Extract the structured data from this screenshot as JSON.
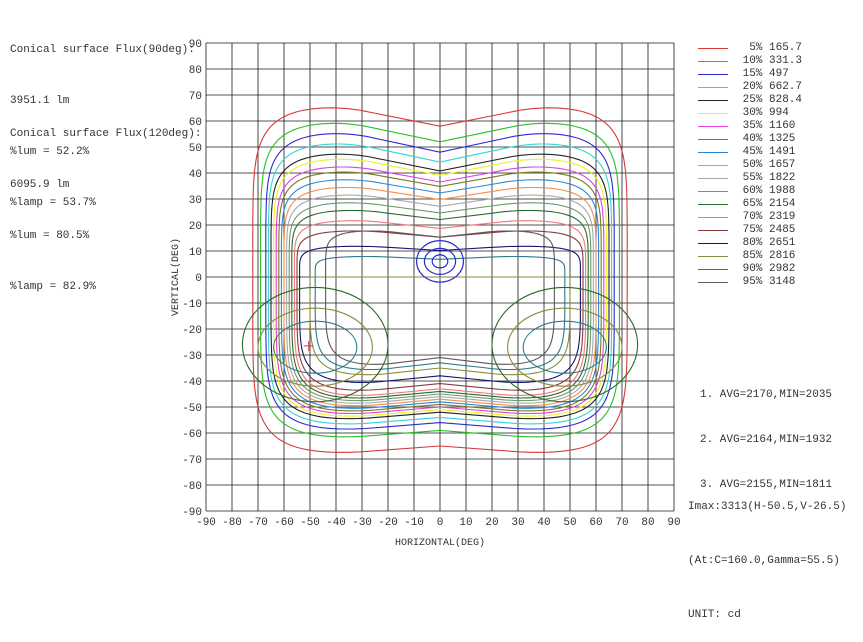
{
  "flux": [
    {
      "title": "Conical surface Flux(90deg):",
      "value": "3951.1 lm",
      "lum": "%lum = 52.2%",
      "lamp": "%lamp = 53.7%"
    },
    {
      "title": "Conical surface Flux(120deg):",
      "value": "6095.9 lm",
      "lum": "%lum = 80.5%",
      "lamp": "%lamp = 82.9%"
    }
  ],
  "averages": [
    "1. AVG=2170,MIN=2035",
    "2. AVG=2164,MIN=1932",
    "3. AVG=2155,MIN=1811"
  ],
  "imax": "Imax:3313(H-50.5,V-26.5)",
  "imax_at": "(At:C=160.0,Gamma=55.5)",
  "unit": "UNIT: cd",
  "chart_data": {
    "type": "contour",
    "xlabel": "HORIZONTAL(DEG)",
    "ylabel": "VERTICAL(DEG)",
    "xlim": [
      -90,
      90
    ],
    "ylim": [
      -90,
      90
    ],
    "xticks": [
      -90,
      -80,
      -70,
      -60,
      -50,
      -40,
      -30,
      -20,
      -10,
      0,
      10,
      20,
      30,
      40,
      50,
      60,
      70,
      80,
      90
    ],
    "yticks": [
      90,
      80,
      70,
      60,
      50,
      40,
      30,
      20,
      10,
      0,
      -10,
      -20,
      -30,
      -40,
      -50,
      -60,
      -70,
      -80,
      -90
    ],
    "grid": true,
    "legend_position": "right",
    "levels": [
      {
        "label": "5%",
        "value": 165.7,
        "color": "#d63a3a",
        "hx": 72,
        "top": 66,
        "bot": -68
      },
      {
        "label": "10%",
        "value": 331.3,
        "color": "#26c126",
        "hx": 69,
        "top": 60,
        "bot": -62
      },
      {
        "label": "15%",
        "value": 497.0,
        "color": "#2a2ad2",
        "hx": 67,
        "top": 56,
        "bot": -59
      },
      {
        "label": "20%",
        "value": 662.7,
        "color": "#2ed6d6",
        "hx": 66,
        "top": 52,
        "bot": -57
      },
      {
        "label": "25%",
        "value": 828.4,
        "color": "#222222",
        "hx": 65,
        "top": 48,
        "bot": -55
      },
      {
        "label": "30%",
        "value": 994.0,
        "color": "#f0f020",
        "hx": 64,
        "top": 46,
        "bot": -54
      },
      {
        "label": "35%",
        "value": 1160,
        "color": "#e040e0",
        "hx": 63,
        "top": 43,
        "bot": -53
      },
      {
        "label": "40%",
        "value": 1325,
        "color": "#7a7a22",
        "hx": 62,
        "top": 41,
        "bot": -52
      },
      {
        "label": "45%",
        "value": 1491,
        "color": "#2a88d8",
        "hx": 61,
        "top": 38,
        "bot": -51
      },
      {
        "label": "50%",
        "value": 1657,
        "color": "#f09050",
        "hx": 60,
        "top": 35,
        "bot": -50
      },
      {
        "label": "55%",
        "value": 1822,
        "color": "#a8a8a8",
        "hx": 59,
        "top": 32,
        "bot": -49
      },
      {
        "label": "60%",
        "value": 1988,
        "color": "#6a9a6a",
        "hx": 58,
        "top": 29,
        "bot": -48
      },
      {
        "label": "65%",
        "value": 2154,
        "color": "#2a6a2a",
        "hx": 57,
        "top": 26,
        "bot": -47
      },
      {
        "label": "70%",
        "value": 2319,
        "color": "#f07878",
        "hx": 56,
        "top": 22,
        "bot": -46
      },
      {
        "label": "75%",
        "value": 2485,
        "color": "#8a3a3a",
        "hx": 55,
        "top": 18,
        "bot": -44
      },
      {
        "label": "80%",
        "value": 2651,
        "color": "#141470",
        "hx": 54,
        "top": 12,
        "bot": -41
      },
      {
        "label": "85%",
        "value": 2816,
        "color": "#8a8a40",
        "hx": 50,
        "top": 0,
        "bot": -38
      },
      {
        "label": "90%",
        "value": 2982,
        "color": "#2a7a8a",
        "hx": 48,
        "top": -8,
        "bot": -36
      },
      {
        "label": "95%",
        "value": 3148,
        "color": "#5a5a5a",
        "hx": 44,
        "top": -18,
        "bot": -34
      }
    ],
    "inner_loops": [
      {
        "cx": -48,
        "cy": -26,
        "rx": 28,
        "ry": 22,
        "color": "#2a6a2a"
      },
      {
        "cx": 48,
        "cy": -26,
        "rx": 28,
        "ry": 22,
        "color": "#2a6a2a"
      },
      {
        "cx": -48,
        "cy": -27,
        "rx": 22,
        "ry": 15,
        "color": "#8a8a40"
      },
      {
        "cx": 48,
        "cy": -27,
        "rx": 22,
        "ry": 15,
        "color": "#8a8a40"
      },
      {
        "cx": -48,
        "cy": -27,
        "rx": 16,
        "ry": 10,
        "color": "#2a7a8a"
      },
      {
        "cx": 48,
        "cy": -27,
        "rx": 16,
        "ry": 10,
        "color": "#2a7a8a"
      }
    ],
    "center_rings": [
      {
        "cx": 0,
        "cy": 6,
        "rx": 9,
        "ry": 8
      },
      {
        "cx": 0,
        "cy": 6,
        "rx": 6,
        "ry": 5
      },
      {
        "cx": 0,
        "cy": 6,
        "rx": 3,
        "ry": 2.5
      }
    ],
    "imax_marker": {
      "h": -50.5,
      "v": -26.5,
      "color": "#d63a3a"
    }
  }
}
